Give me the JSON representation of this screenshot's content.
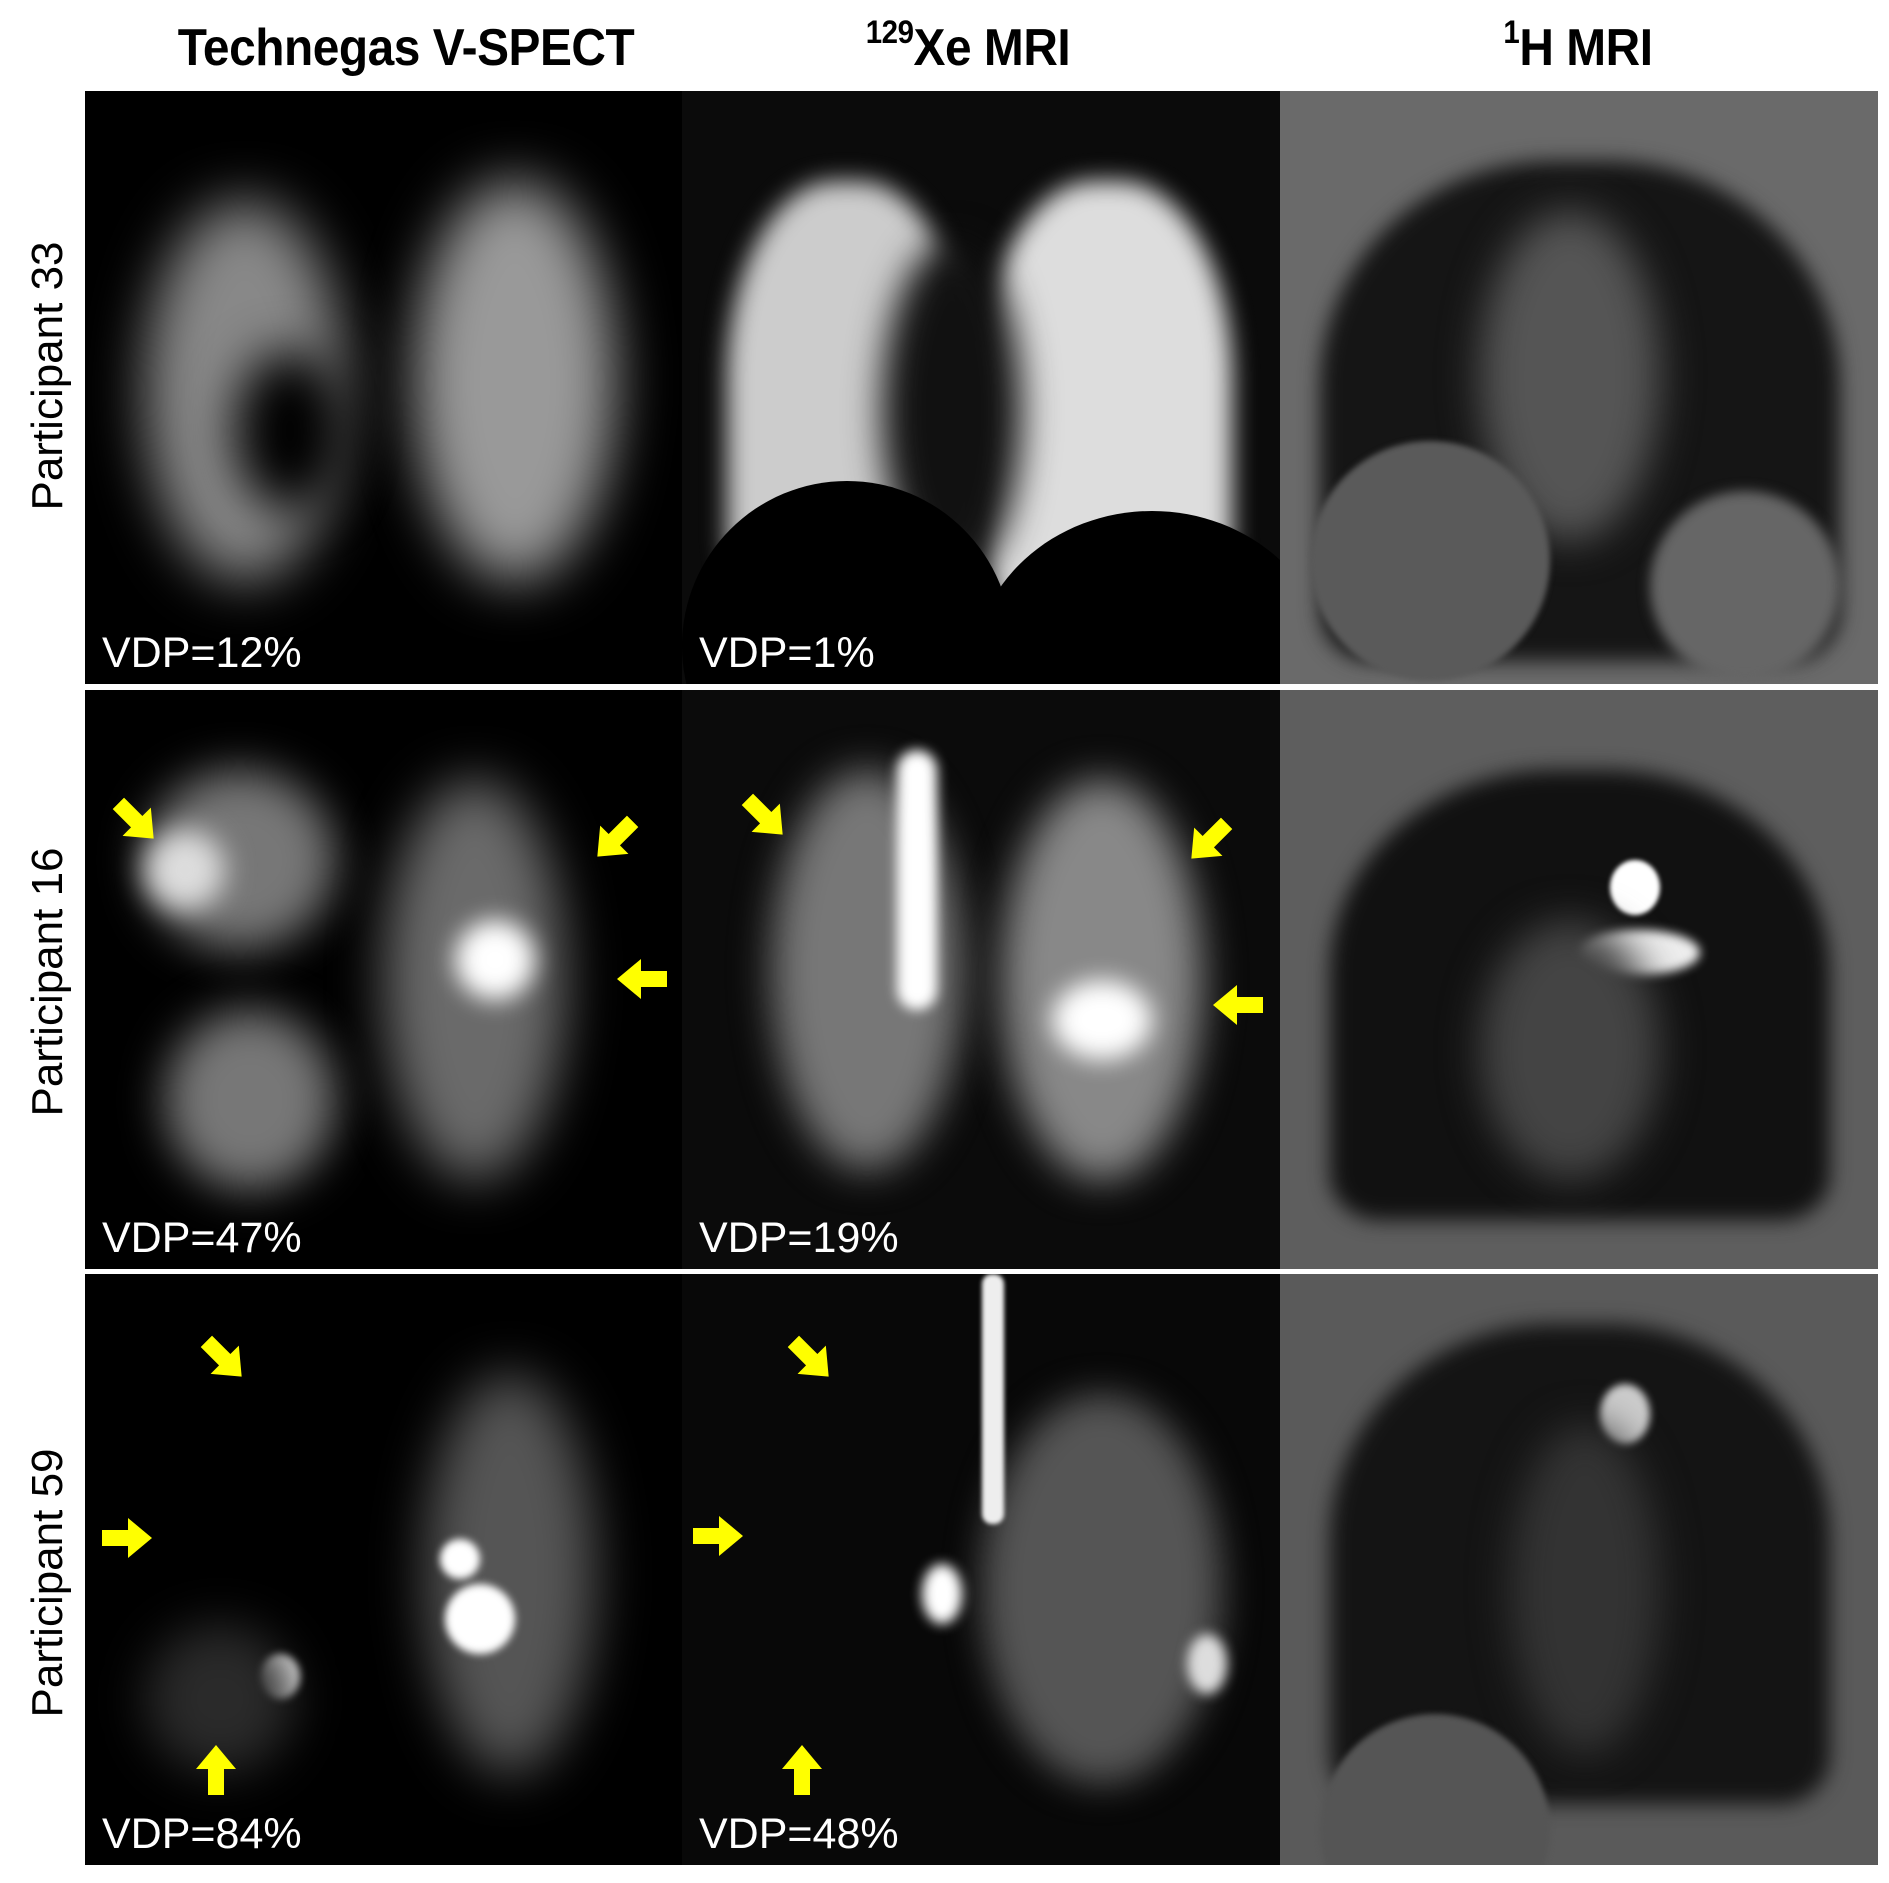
{
  "columns": [
    {
      "title": "Technegas V-SPECT",
      "sup": ""
    },
    {
      "title": "Xe MRI",
      "sup": "129"
    },
    {
      "title": "H MRI",
      "sup": "1"
    }
  ],
  "rows": [
    {
      "label": "Participant 33",
      "spect_vdp": "VDP=12%",
      "xe_vdp": "VDP=1%"
    },
    {
      "label": "Participant 16",
      "spect_vdp": "VDP=47%",
      "xe_vdp": "VDP=19%"
    },
    {
      "label": "Participant 59",
      "spect_vdp": "VDP=84%",
      "xe_vdp": "VDP=48%"
    }
  ],
  "colors": {
    "arrow": "#ffff00",
    "background": "#000000",
    "label_text": "#ffffff"
  },
  "icons": {
    "arrow": "yellow-arrow-icon"
  }
}
